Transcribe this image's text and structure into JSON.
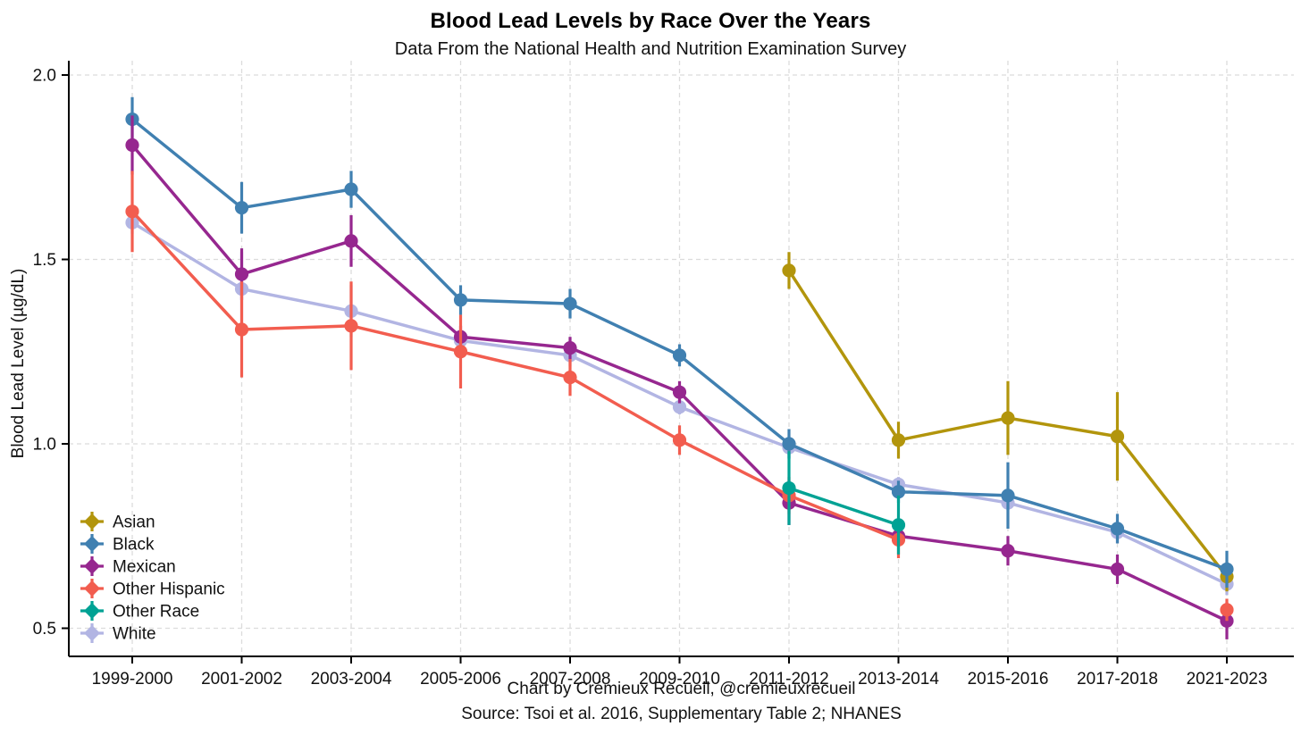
{
  "chart_data": {
    "type": "line",
    "title": "Blood Lead Levels by Race Over the Years",
    "subtitle": "Data From the National Health and Nutrition Examination Survey",
    "captions": [
      "Chart by Crémieux Recueil, @cremieuxrecueil",
      "Source: Tsoi et al. 2016, Supplementary Table 2; NHANES"
    ],
    "ylabel": "Blood Lead Level (µg/dL)",
    "xlabel": "",
    "categories": [
      "1999-2000",
      "2001-2002",
      "2003-2004",
      "2005-2006",
      "2007-2008",
      "2009-2010",
      "2011-2012",
      "2013-2014",
      "2015-2016",
      "2017-2018",
      "2021-2023"
    ],
    "yticks": [
      2.0,
      1.5,
      1.0,
      0.5
    ],
    "ylim": [
      0.42,
      2.04
    ],
    "grid": {
      "horizontal": true,
      "vertical": true,
      "style": "dashed",
      "color": "#DCDCDC"
    },
    "legend": {
      "position": "inside-bottom-left"
    },
    "point_shape": "circle",
    "error_bars": true,
    "series": [
      {
        "name": "Asian",
        "color": "#B2950C",
        "values": [
          null,
          null,
          null,
          null,
          null,
          null,
          1.47,
          1.01,
          1.07,
          1.02,
          0.64
        ],
        "errors": [
          null,
          null,
          null,
          null,
          null,
          null,
          0.05,
          0.05,
          0.1,
          0.12,
          0.04
        ]
      },
      {
        "name": "Black",
        "color": "#4080B1",
        "values": [
          1.88,
          1.64,
          1.69,
          1.39,
          1.38,
          1.24,
          1.0,
          0.87,
          0.86,
          0.77,
          0.66
        ],
        "errors": [
          0.06,
          0.07,
          0.05,
          0.04,
          0.04,
          0.03,
          0.04,
          0.03,
          0.09,
          0.04,
          0.05
        ]
      },
      {
        "name": "Mexican",
        "color": "#96278F",
        "values": [
          1.81,
          1.46,
          1.55,
          1.29,
          1.26,
          1.14,
          0.84,
          0.75,
          0.71,
          0.66,
          0.52
        ],
        "errors": [
          0.08,
          0.07,
          0.07,
          0.03,
          0.03,
          0.03,
          0.06,
          0.03,
          0.04,
          0.04,
          0.05
        ]
      },
      {
        "name": "Other Hispanic",
        "color": "#F25D4F",
        "values": [
          1.63,
          1.31,
          1.32,
          1.25,
          1.18,
          1.01,
          0.86,
          0.74,
          null,
          null,
          0.55
        ],
        "errors": [
          0.11,
          0.13,
          0.12,
          0.1,
          0.05,
          0.04,
          0.05,
          0.05,
          null,
          null,
          0.03
        ]
      },
      {
        "name": "Other Race",
        "color": "#00A294",
        "values": [
          null,
          null,
          null,
          null,
          null,
          null,
          0.88,
          0.78,
          null,
          null,
          null
        ],
        "errors": [
          null,
          null,
          null,
          null,
          null,
          null,
          0.1,
          0.08,
          null,
          null,
          null
        ]
      },
      {
        "name": "White",
        "color": "#B2B5E3",
        "values": [
          1.6,
          1.42,
          1.36,
          1.28,
          1.24,
          1.1,
          0.99,
          0.89,
          0.84,
          0.76,
          0.62
        ],
        "errors": [
          0.03,
          0.1,
          0.07,
          0.03,
          0.03,
          0.02,
          0.03,
          0.02,
          0.02,
          0.03,
          0.03
        ]
      }
    ]
  }
}
